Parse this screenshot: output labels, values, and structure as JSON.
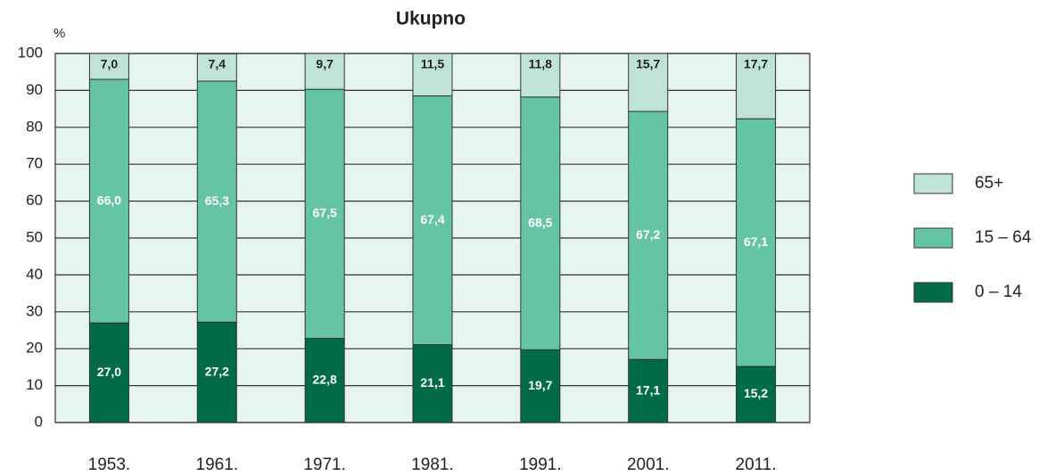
{
  "chart_data": {
    "type": "stacked-bar",
    "title": "Ukupno",
    "y_label": "%",
    "categories": [
      "1953.",
      "1961.",
      "1971.",
      "1981.",
      "1991.",
      "2001.",
      "2011."
    ],
    "series": [
      {
        "name": "0 – 14",
        "color": "#006b45",
        "values": [
          27.0,
          27.2,
          22.8,
          21.1,
          19.7,
          17.1,
          15.2
        ],
        "value_labels": [
          "27,0",
          "27,2",
          "22,8",
          "21,1",
          "19,7",
          "17,1",
          "15,2"
        ]
      },
      {
        "name": "15 – 64",
        "color": "#66c4a6",
        "values": [
          66.0,
          65.3,
          67.5,
          67.4,
          68.5,
          67.2,
          67.1
        ],
        "value_labels": [
          "66,0",
          "65,3",
          "67,5",
          "67,4",
          "68,5",
          "67,2",
          "67,1"
        ]
      },
      {
        "name": "65+",
        "color": "#bfe4d6",
        "values": [
          7.0,
          7.4,
          9.7,
          11.5,
          11.8,
          15.7,
          17.7
        ],
        "value_labels": [
          "7,0",
          "7,4",
          "9,7",
          "11,5",
          "11,8",
          "15,7",
          "17,7"
        ]
      }
    ],
    "ylim": [
      0,
      100
    ],
    "yticks": [
      0,
      10,
      20,
      30,
      40,
      50,
      60,
      70,
      80,
      90,
      100
    ],
    "grid": true,
    "legend": "right"
  }
}
